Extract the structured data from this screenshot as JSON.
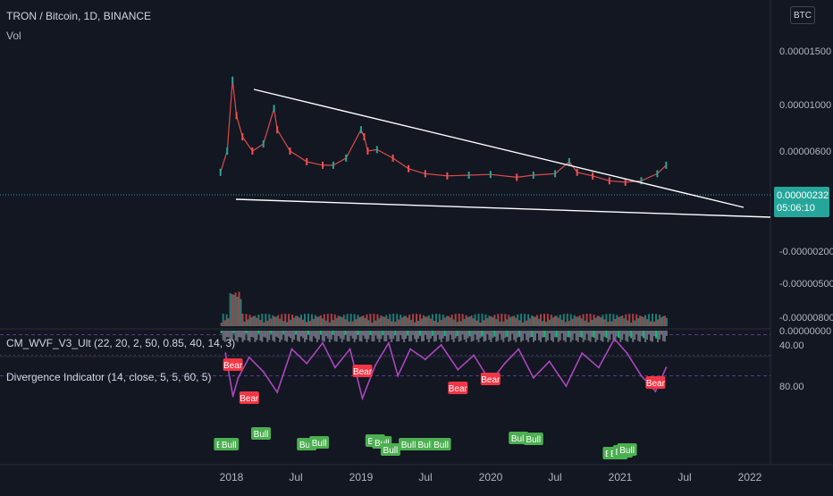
{
  "header": {
    "symbol_line": "TRON / Bitcoin, 1D, BINANCE",
    "vol_label": "Vol",
    "currency_button": "BTC",
    "last_price": "0.00000232",
    "countdown": "05:06:10"
  },
  "indicators": {
    "wvf_label": "CM_WVF_V3_Ult (22, 20, 2, 50, 0.85, 40, 14, 3)",
    "divergence_label": "Divergence Indicator (14, close, 5, 5, 60, 5)"
  },
  "colors": {
    "background": "#131722",
    "up": "#26a69a",
    "down": "#ef5350",
    "trendline": "#ffffff",
    "rsi": "#ab47bc",
    "band": "#7e57c2",
    "bull": "#4caf50",
    "bear": "#f23645",
    "wvf_lime": "#00e676",
    "wvf_gray": "#787b86"
  },
  "chart_data": [
    {
      "type": "line",
      "series_kind": "candlestick (rendered as price path)",
      "x_ticks": [
        "2018",
        "Jul",
        "2019",
        "Jul",
        "2020",
        "Jul",
        "2021",
        "Jul",
        "2022"
      ],
      "y_ticks": [
        "0.00001500",
        "0.00001000",
        "0.00000600",
        "0.00000232",
        "-0.00000200",
        "-0.00000500",
        "-0.00000800"
      ],
      "ylim": [
        -8e-07,
        1.8e-06
      ],
      "x": [
        "2017-12-01",
        "2017-12-20",
        "2018-01-04",
        "2018-01-15",
        "2018-02-01",
        "2018-03-01",
        "2018-04-01",
        "2018-05-01",
        "2018-05-10",
        "2018-06-15",
        "2018-08-01",
        "2018-09-15",
        "2018-10-15",
        "2018-11-20",
        "2019-01-01",
        "2019-01-10",
        "2019-01-20",
        "2019-02-15",
        "2019-04-01",
        "2019-05-15",
        "2019-07-01",
        "2019-09-01",
        "2019-11-01",
        "2020-01-01",
        "2020-03-15",
        "2020-05-01",
        "2020-07-01",
        "2020-08-10",
        "2020-09-01",
        "2020-10-15",
        "2020-12-01",
        "2021-01-15",
        "2021-03-01",
        "2021-04-15",
        "2021-05-10"
      ],
      "values": [
        3e-07,
        6e-07,
        1.6e-06,
        1.1e-06,
        8e-07,
        6e-07,
        7e-07,
        1.2e-06,
        9e-07,
        6e-07,
        4.5e-07,
        4e-07,
        4e-07,
        5e-07,
        9e-07,
        8e-07,
        6e-07,
        6.2e-07,
        5e-07,
        3.5e-07,
        2.8e-07,
        2.5e-07,
        2.6e-07,
        2.7e-07,
        2.3e-07,
        2.6e-07,
        2.8e-07,
        4.5e-07,
        3e-07,
        2.5e-07,
        1.8e-07,
        1.6e-07,
        1.8e-07,
        2.8e-07,
        2.32e-06
      ],
      "annotations": [
        "descending trendline",
        "support trendline"
      ]
    },
    {
      "type": "bar",
      "name": "Vol"
    },
    {
      "type": "bar",
      "name": "CM_WVF_V3_Ult"
    },
    {
      "type": "line",
      "name": "Divergence Indicator",
      "y_ticks": [
        "80.00",
        "40.00"
      ],
      "ylim": [
        20,
        100
      ],
      "band": [
        30,
        70
      ],
      "x": [
        "2017-12-15",
        "2018-01-05",
        "2018-01-20",
        "2018-02-20",
        "2018-04-01",
        "2018-05-10",
        "2018-06-20",
        "2018-08-01",
        "2018-09-15",
        "2018-10-20",
        "2018-12-01",
        "2019-01-05",
        "2019-02-10",
        "2019-03-20",
        "2019-04-15",
        "2019-05-20",
        "2019-07-01",
        "2019-08-15",
        "2019-10-01",
        "2019-11-15",
        "2020-01-01",
        "2020-02-10",
        "2020-03-20",
        "2020-05-01",
        "2020-06-15",
        "2020-08-01",
        "2020-09-15",
        "2020-11-01",
        "2020-12-15",
        "2021-01-20",
        "2021-03-01",
        "2021-04-10",
        "2021-05-10"
      ],
      "values": [
        48,
        90,
        72,
        52,
        66,
        86,
        44,
        58,
        38,
        62,
        44,
        92,
        60,
        38,
        70,
        44,
        54,
        40,
        64,
        50,
        76,
        58,
        44,
        72,
        56,
        80,
        48,
        62,
        34,
        48,
        70,
        85,
        62
      ],
      "labels": [
        {
          "kind": "bear",
          "text": "Bear",
          "x": "2018-01-05"
        },
        {
          "kind": "bear",
          "text": "Bear",
          "x": "2018-02-20"
        },
        {
          "kind": "bear",
          "text": "Bear",
          "x": "2019-01-05"
        },
        {
          "kind": "bear",
          "text": "Bear",
          "x": "2019-10-01"
        },
        {
          "kind": "bear",
          "text": "Bear",
          "x": "2020-01-01"
        },
        {
          "kind": "bear",
          "text": "Bear",
          "x": "2021-04-10"
        },
        {
          "kind": "bull",
          "text": "Bull",
          "x": "2017-12-10"
        },
        {
          "kind": "bull",
          "text": "Bull",
          "x": "2017-12-25"
        },
        {
          "kind": "bull",
          "text": "Bull",
          "x": "2018-03-25"
        },
        {
          "kind": "bull",
          "text": "Bull",
          "x": "2018-08-01"
        },
        {
          "kind": "bull",
          "text": "Bull",
          "x": "2018-09-05"
        },
        {
          "kind": "bull",
          "text": "Bull",
          "x": "2019-02-10"
        },
        {
          "kind": "bull",
          "text": "Bull",
          "x": "2019-03-01"
        },
        {
          "kind": "bull",
          "text": "Bull",
          "x": "2019-03-25"
        },
        {
          "kind": "bull",
          "text": "Bull",
          "x": "2019-05-15"
        },
        {
          "kind": "bull",
          "text": "Bull",
          "x": "2019-07-01"
        },
        {
          "kind": "bull",
          "text": "Bull",
          "x": "2019-08-15"
        },
        {
          "kind": "bull",
          "text": "Bull",
          "x": "2020-03-20"
        },
        {
          "kind": "bull",
          "text": "Bull",
          "x": "2020-05-01"
        },
        {
          "kind": "bull",
          "text": "Bull",
          "x": "2020-12-10"
        },
        {
          "kind": "bull",
          "text": "Bull",
          "x": "2020-12-25"
        },
        {
          "kind": "bull",
          "text": "Bull",
          "x": "2021-01-08"
        },
        {
          "kind": "bull",
          "text": "Bull",
          "x": "2021-01-20"
        }
      ]
    }
  ]
}
